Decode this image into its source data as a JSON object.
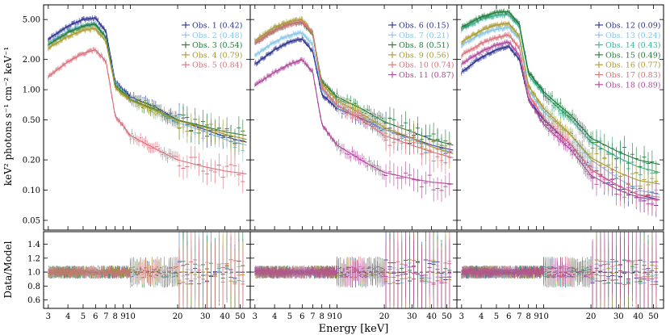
{
  "chart_data": {
    "type": "line",
    "xlabel": "Energy [keV]",
    "ylabel_top": "keV² photons s⁻¹ cm⁻² keV⁻¹",
    "ylabel_bottom": "Data/Model",
    "x_log": true,
    "y_log_top": true,
    "xlim": [
      2.8,
      58
    ],
    "ylim_top": [
      0.04,
      7.0
    ],
    "ylim_bottom": [
      0.48,
      1.58
    ],
    "x_ticks": [
      {
        "v": 3,
        "label": "3"
      },
      {
        "v": 4,
        "label": "4"
      },
      {
        "v": 5,
        "label": "5"
      },
      {
        "v": 6,
        "label": "6"
      },
      {
        "v": 7,
        "label": "7"
      },
      {
        "v": 8,
        "label": "8"
      },
      {
        "v": 9,
        "label": "9"
      },
      {
        "v": 10,
        "label": "10"
      },
      {
        "v": 20,
        "label": "20"
      },
      {
        "v": 30,
        "label": "30"
      },
      {
        "v": 40,
        "label": "40"
      },
      {
        "v": 50,
        "label": "50"
      }
    ],
    "y_ticks_top": [
      {
        "v": 0.05,
        "label": "0.05"
      },
      {
        "v": 0.1,
        "label": "0.10"
      },
      {
        "v": 0.2,
        "label": "0.20"
      },
      {
        "v": 0.5,
        "label": "0.50"
      },
      {
        "v": 1.0,
        "label": "1.00"
      },
      {
        "v": 2.0,
        "label": "2.00"
      },
      {
        "v": 5.0,
        "label": "5.00"
      }
    ],
    "y_ticks_bottom": [
      {
        "v": 0.6,
        "label": "0.6"
      },
      {
        "v": 0.8,
        "label": "0.8"
      },
      {
        "v": 1.0,
        "label": "1.0"
      },
      {
        "v": 1.2,
        "label": "1.2"
      },
      {
        "v": 1.4,
        "label": "1.4"
      }
    ],
    "panels": [
      {
        "series": [
          {
            "name": "Obs. 1 (0.42)",
            "color": "#2b2f8f",
            "values": [
              3.2,
              4.3,
              5.0,
              5.2,
              3.8,
              1.2,
              0.85,
              0.65,
              0.5,
              0.4,
              0.34,
              0.3
            ]
          },
          {
            "name": "Obs. 2 (0.48)",
            "color": "#86c5e8",
            "values": [
              2.9,
              3.8,
              4.4,
              4.6,
              3.4,
              1.15,
              0.8,
              0.6,
              0.47,
              0.38,
              0.32,
              0.28
            ]
          },
          {
            "name": "Obs. 3 (0.54)",
            "color": "#1f7a3a",
            "values": [
              2.8,
              3.7,
              4.3,
              4.5,
              3.3,
              1.1,
              0.8,
              0.62,
              0.5,
              0.43,
              0.38,
              0.35
            ]
          },
          {
            "name": "Obs. 4 (0.79)",
            "color": "#a89a2c",
            "values": [
              2.6,
              3.4,
              3.9,
              4.1,
              3.0,
              1.05,
              0.78,
              0.6,
              0.49,
              0.42,
              0.36,
              0.32
            ]
          },
          {
            "name": "Obs. 5 (0.84)",
            "color": "#d9707c",
            "values": [
              1.35,
              1.9,
              2.3,
              2.5,
              1.9,
              0.55,
              0.35,
              0.25,
              0.2,
              0.17,
              0.155,
              0.145
            ]
          }
        ]
      },
      {
        "series": [
          {
            "name": "Obs. 6 (0.15)",
            "color": "#2b2f8f",
            "values": [
              1.8,
              2.5,
              3.0,
              3.2,
              2.4,
              0.9,
              0.65,
              0.5,
              0.4,
              0.33,
              0.28,
              0.25
            ]
          },
          {
            "name": "Obs. 7 (0.21)",
            "color": "#86c5e8",
            "values": [
              2.2,
              3.0,
              3.5,
              3.7,
              2.8,
              1.0,
              0.7,
              0.52,
              0.4,
              0.32,
              0.27,
              0.24
            ]
          },
          {
            "name": "Obs. 8 (0.51)",
            "color": "#1f7a3a",
            "values": [
              2.9,
              3.9,
              4.5,
              4.7,
              3.5,
              1.2,
              0.85,
              0.62,
              0.48,
              0.38,
              0.32,
              0.28
            ]
          },
          {
            "name": "Obs. 9 (0.56)",
            "color": "#a89a2c",
            "values": [
              3.1,
              4.2,
              4.8,
              5.0,
              3.7,
              1.15,
              0.78,
              0.55,
              0.42,
              0.33,
              0.27,
              0.23
            ]
          },
          {
            "name": "Obs. 10 (0.74)",
            "color": "#d9707c",
            "values": [
              2.9,
              3.9,
              4.5,
              4.8,
              3.6,
              1.05,
              0.7,
              0.48,
              0.35,
              0.28,
              0.24,
              0.21
            ]
          },
          {
            "name": "Obs. 11 (0.87)",
            "color": "#b0479b",
            "values": [
              1.1,
              1.5,
              1.8,
              2.0,
              1.5,
              0.45,
              0.28,
              0.19,
              0.15,
              0.13,
              0.12,
              0.115
            ]
          }
        ]
      },
      {
        "series": [
          {
            "name": "Obs. 12 (0.09)",
            "color": "#2b2f8f",
            "values": [
              1.5,
              2.1,
              2.5,
              2.7,
              2.0,
              0.8,
              0.5,
              0.28,
              0.16,
              0.11,
              0.09,
              0.08
            ]
          },
          {
            "name": "Obs. 13 (0.24)",
            "color": "#86c5e8",
            "values": [
              2.8,
              3.6,
              4.0,
              4.2,
              3.2,
              1.0,
              0.6,
              0.35,
              0.2,
              0.13,
              0.1,
              0.09
            ]
          },
          {
            "name": "Obs. 14 (0.43)",
            "color": "#3bb39a",
            "values": [
              4.0,
              5.0,
              5.5,
              5.6,
              4.2,
              1.4,
              0.9,
              0.5,
              0.3,
              0.21,
              0.17,
              0.15
            ]
          },
          {
            "name": "Obs. 15 (0.49)",
            "color": "#1f7a3a",
            "values": [
              4.2,
              5.3,
              5.9,
              6.0,
              4.5,
              1.5,
              0.95,
              0.55,
              0.33,
              0.24,
              0.2,
              0.18
            ]
          },
          {
            "name": "Obs. 16 (0.77)",
            "color": "#a89a2c",
            "values": [
              3.0,
              3.9,
              4.4,
              4.6,
              3.4,
              1.1,
              0.65,
              0.35,
              0.21,
              0.15,
              0.125,
              0.115
            ]
          },
          {
            "name": "Obs. 17 (0.83)",
            "color": "#d9707c",
            "values": [
              2.2,
              2.9,
              3.3,
              3.5,
              2.6,
              0.9,
              0.52,
              0.28,
              0.16,
              0.11,
              0.09,
              0.085
            ]
          },
          {
            "name": "Obs. 18 (0.89)",
            "color": "#b0479b",
            "values": [
              1.8,
              2.4,
              2.8,
              3.0,
              2.2,
              0.8,
              0.45,
              0.25,
              0.14,
              0.1,
              0.085,
              0.08
            ]
          }
        ]
      }
    ]
  }
}
